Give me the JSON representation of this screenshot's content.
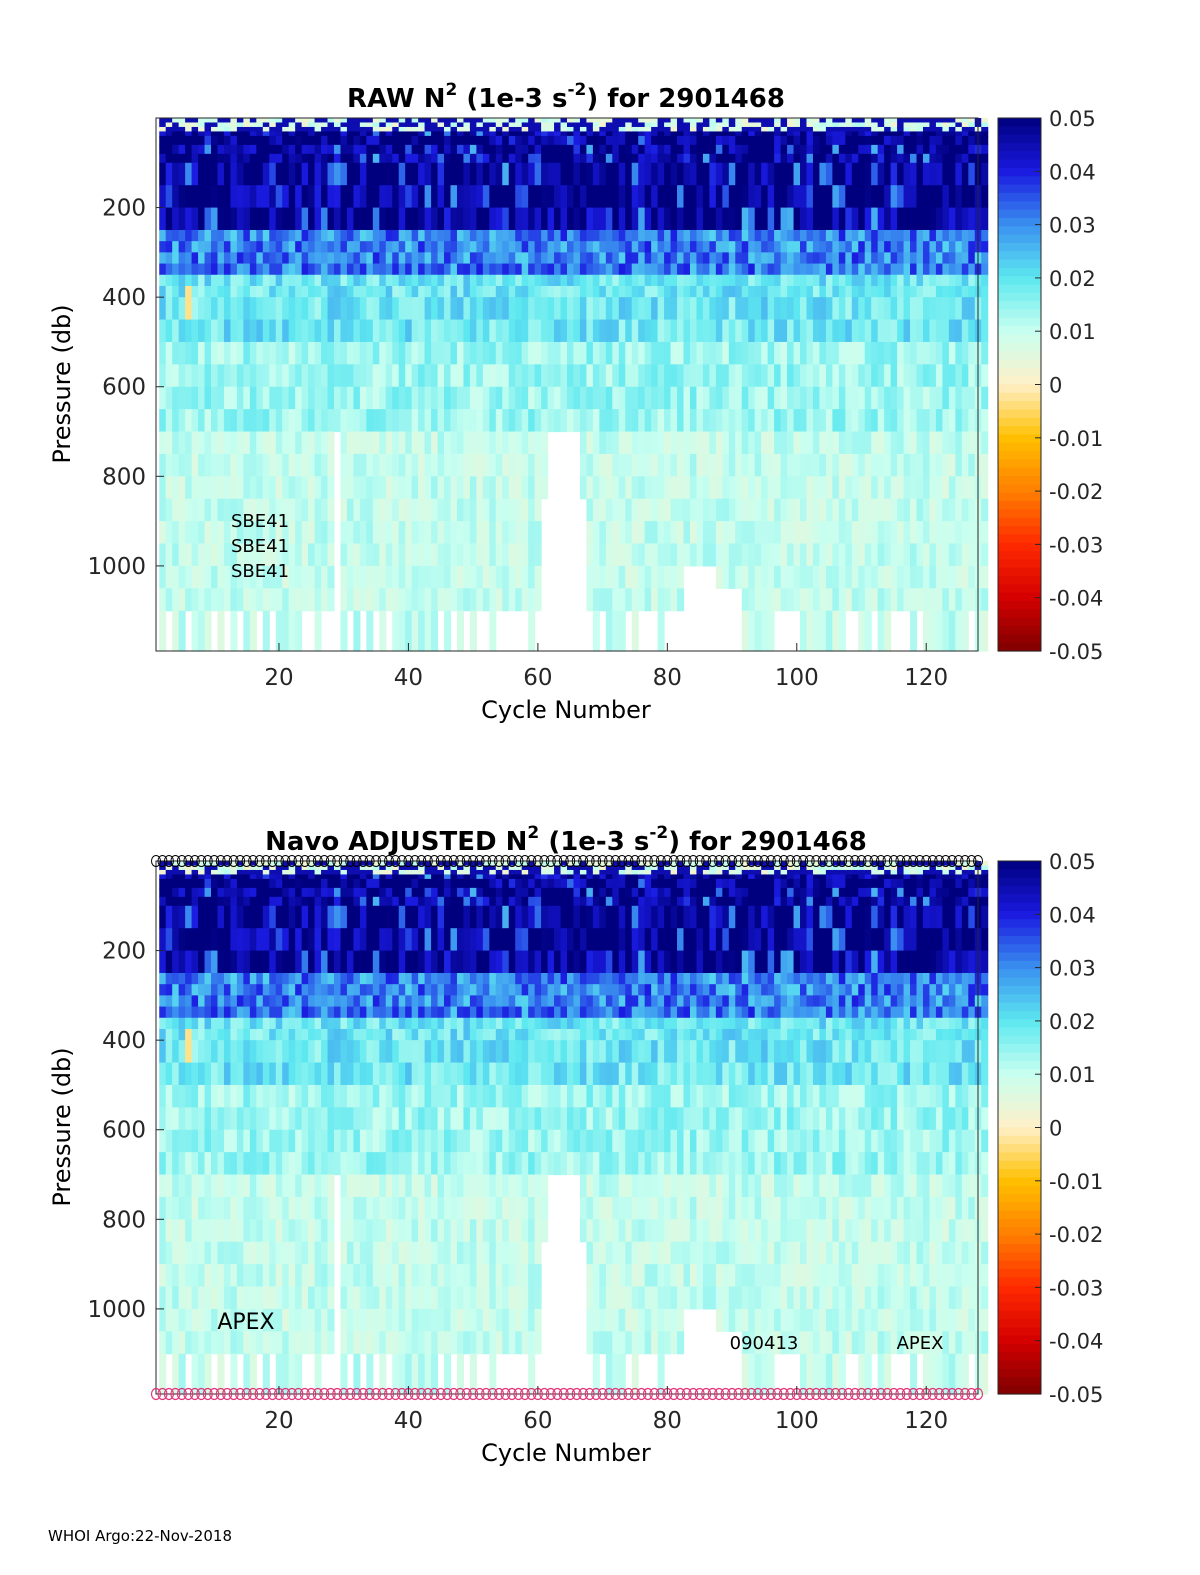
{
  "footer": "WHOI Argo:22-Nov-2018",
  "chart_data": [
    {
      "type": "heatmap",
      "title": "RAW N",
      "title_sup": "2",
      "title_mid": " (1e-3 s",
      "title_sup2": "-2",
      "title_end": ") for 2901468",
      "xlabel": "Cycle Number",
      "ylabel": "Pressure (db)",
      "xticks": [
        20,
        40,
        60,
        80,
        100,
        120
      ],
      "yticks": [
        200,
        400,
        600,
        800,
        1000
      ],
      "xlim": [
        1,
        128
      ],
      "ylim": [
        0,
        1190
      ],
      "y_reversed": true,
      "colorbar": {
        "ticks": [
          "0.05",
          "0.04",
          "0.03",
          "0.02",
          "0.01",
          "0",
          "-0.01",
          "-0.02",
          "-0.03",
          "-0.04",
          "-0.05"
        ],
        "range": [
          -0.05,
          0.05
        ]
      },
      "annotations": [
        "SBE41",
        "SBE41",
        "SBE41"
      ]
    },
    {
      "type": "heatmap",
      "title": "Navo  ADJUSTED N",
      "title_sup": "2",
      "title_mid": " (1e-3 s",
      "title_sup2": "-2",
      "title_end": ") for 2901468",
      "xlabel": "Cycle Number",
      "ylabel": "Pressure (db)",
      "xticks": [
        20,
        40,
        60,
        80,
        100,
        120
      ],
      "yticks": [
        200,
        400,
        600,
        800,
        1000
      ],
      "xlim": [
        1,
        128
      ],
      "ylim": [
        0,
        1190
      ],
      "y_reversed": true,
      "colorbar": {
        "ticks": [
          "0.05",
          "0.04",
          "0.03",
          "0.02",
          "0.01",
          "0",
          "-0.01",
          "-0.02",
          "-0.03",
          "-0.04",
          "-0.05"
        ],
        "range": [
          -0.05,
          0.05
        ]
      },
      "annotations": [
        "APEX",
        "090413",
        "APEX"
      ],
      "top_marker_color": "#000000",
      "bottom_marker_color": "#e0357a"
    }
  ],
  "colormap": [
    "#7f0000",
    "#d40000",
    "#ff2a00",
    "#ff7f00",
    "#ffc000",
    "#fff0c8",
    "#c8fff0",
    "#5de8f0",
    "#3a8ff0",
    "#1a1ae0",
    "#00007f"
  ]
}
